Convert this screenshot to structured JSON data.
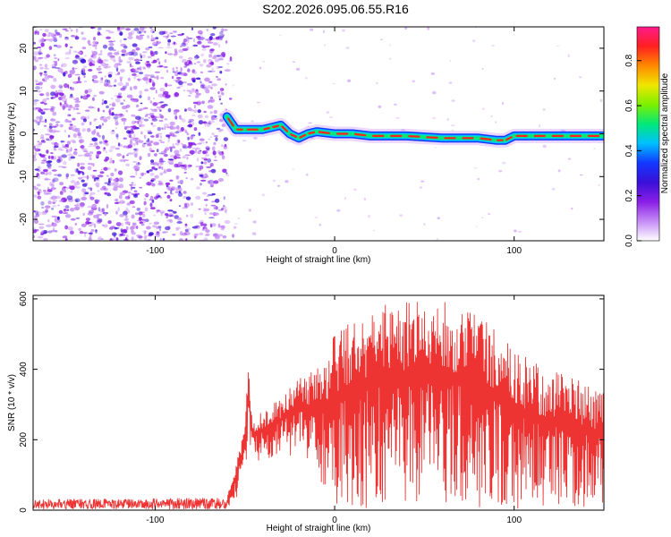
{
  "title": "S202.2026.095.06.55.R16",
  "colors": {
    "snr_line": "#ee3333",
    "axis": "#000000",
    "colormap": [
      "#ffffff",
      "#c58cf5",
      "#8a1ee6",
      "#3a10d8",
      "#1238ff",
      "#00c0ff",
      "#00e87a",
      "#7cf000",
      "#f0e600",
      "#ff8a00",
      "#ff2020",
      "#ff1a8c"
    ]
  },
  "chart_data": [
    {
      "type": "heatmap",
      "name": "spectrogram",
      "xlabel": "Height of straight line (km)",
      "ylabel": "Frequency (Hz)",
      "xlim": [
        -168,
        150
      ],
      "ylim": [
        -25,
        25
      ],
      "x_ticks": [
        -100,
        0,
        100
      ],
      "x_tick_labels": [
        "-100",
        "0",
        "100"
      ],
      "y_ticks": [
        -20,
        -10,
        0,
        10,
        20
      ],
      "y_tick_labels": [
        "-20",
        "-10",
        "0",
        "10",
        "20"
      ],
      "noise_region_x": [
        -168,
        -60
      ],
      "track_points": {
        "x": [
          -60,
          -55,
          -50,
          -40,
          -35,
          -30,
          -25,
          -20,
          -15,
          -10,
          0,
          10,
          20,
          40,
          60,
          70,
          80,
          90,
          95,
          100,
          120,
          150
        ],
        "freq": [
          4,
          1,
          1,
          1,
          1.5,
          2,
          0,
          -1,
          0,
          0.5,
          0,
          0,
          -0.5,
          -0.5,
          -1,
          -1,
          -1,
          -1.5,
          -1.5,
          -0.5,
          -0.5,
          -0.5
        ]
      },
      "colorbar": {
        "label": "Normalized spectral amplitude",
        "range": [
          0,
          0.95
        ],
        "ticks": [
          0.0,
          0.2,
          0.4,
          0.6,
          0.8
        ],
        "tick_labels": [
          "0.0",
          "0.2",
          "0.4",
          "0.6",
          "0.8"
        ]
      }
    },
    {
      "type": "line",
      "name": "snr",
      "xlabel": "Height of straight line (km)",
      "ylabel": "SNR (10 * v/v)",
      "xlim": [
        -168,
        150
      ],
      "ylim": [
        0,
        610
      ],
      "x_ticks": [
        -100,
        0,
        100
      ],
      "x_tick_labels": [
        "-100",
        "0",
        "100"
      ],
      "y_ticks": [
        0,
        200,
        400,
        600
      ],
      "y_tick_labels": [
        "0",
        "200",
        "400",
        "600"
      ],
      "envelope": {
        "x": [
          -168,
          -60,
          -55,
          -50,
          -48,
          -46,
          -40,
          -30,
          -20,
          -15,
          -10,
          -5,
          0,
          10,
          20,
          30,
          40,
          50,
          60,
          70,
          80,
          90,
          100,
          110,
          120,
          130,
          140,
          150
        ],
        "upper": [
          30,
          35,
          130,
          240,
          420,
          260,
          280,
          320,
          380,
          380,
          410,
          440,
          500,
          540,
          570,
          590,
          600,
          600,
          600,
          590,
          560,
          510,
          460,
          420,
          400,
          380,
          360,
          330
        ],
        "lower": [
          3,
          3,
          30,
          130,
          160,
          130,
          140,
          150,
          160,
          140,
          100,
          40,
          10,
          5,
          5,
          5,
          5,
          5,
          5,
          5,
          5,
          5,
          5,
          5,
          5,
          5,
          5,
          5
        ]
      }
    }
  ]
}
